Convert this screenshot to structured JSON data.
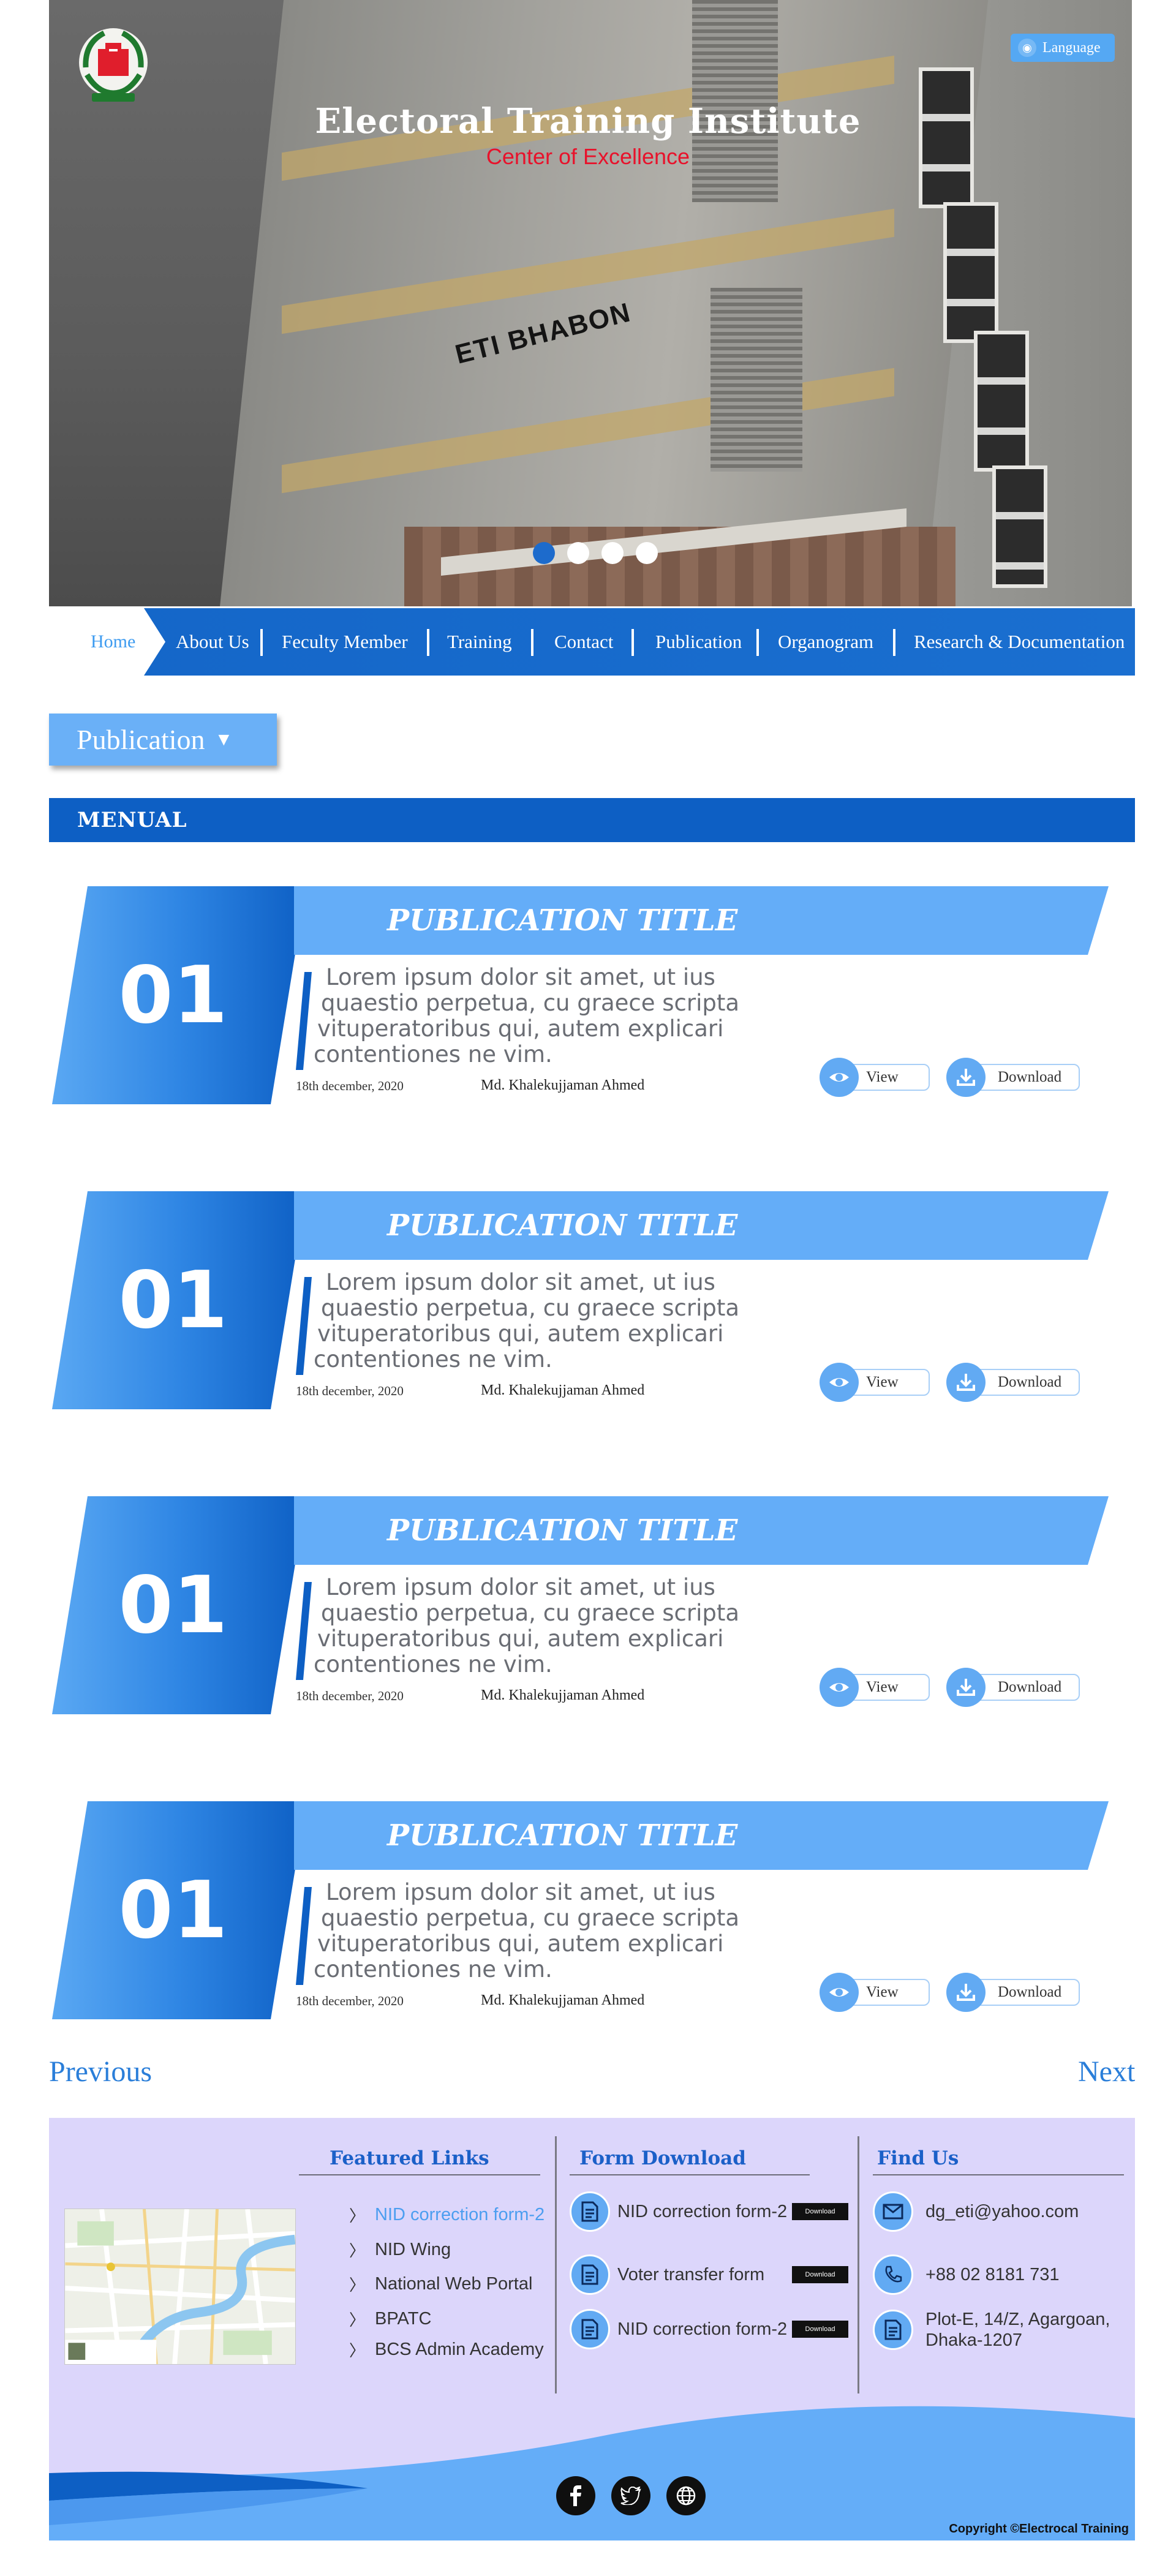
{
  "hero": {
    "title": "Electoral Training Institute",
    "subtitle": "Center of Excellence",
    "language_label": "Language",
    "building_label": "ETI BHABON",
    "slides": 4,
    "active_slide": 1
  },
  "nav": {
    "items": [
      {
        "label": "Home",
        "active": true
      },
      {
        "label": "About Us"
      },
      {
        "label": "Feculty Member"
      },
      {
        "label": "Training"
      },
      {
        "label": "Contact"
      },
      {
        "label": "Publication"
      },
      {
        "label": "Organogram"
      },
      {
        "label": "Research & Documentation"
      }
    ]
  },
  "dropdown": {
    "label": "Publication"
  },
  "section": {
    "title": "MENUAL"
  },
  "publications": [
    {
      "number": "01",
      "title": "PUBLICATION TITLE",
      "excerpt_lines": [
        "Lorem ipsum dolor sit amet, ut ius",
        "quaestio perpetua, cu graece scripta",
        "vituperatoribus qui, autem explicari",
        "contentiones ne vim."
      ],
      "date": "18th december, 2020",
      "author": "Md. Khalekujjaman Ahmed",
      "view_label": "View",
      "download_label": "Download"
    },
    {
      "number": "01",
      "title": "PUBLICATION TITLE",
      "excerpt_lines": [
        "Lorem ipsum dolor sit amet, ut ius",
        "quaestio perpetua, cu graece scripta",
        "vituperatoribus qui, autem explicari",
        "contentiones ne vim."
      ],
      "date": "18th december, 2020",
      "author": "Md. Khalekujjaman Ahmed",
      "view_label": "View",
      "download_label": "Download"
    },
    {
      "number": "01",
      "title": "PUBLICATION TITLE",
      "excerpt_lines": [
        "Lorem ipsum dolor sit amet, ut ius",
        "quaestio perpetua, cu graece scripta",
        "vituperatoribus qui, autem explicari",
        "contentiones ne vim."
      ],
      "date": "18th december, 2020",
      "author": "Md. Khalekujjaman Ahmed",
      "view_label": "View",
      "download_label": "Download"
    },
    {
      "number": "01",
      "title": "PUBLICATION TITLE",
      "excerpt_lines": [
        "Lorem ipsum dolor sit amet, ut ius",
        "quaestio perpetua, cu graece scripta",
        "vituperatoribus qui, autem explicari",
        "contentiones ne vim."
      ],
      "date": "18th december, 2020",
      "author": "Md. Khalekujjaman Ahmed",
      "view_label": "View",
      "download_label": "Download"
    }
  ],
  "pager": {
    "previous": "Previous",
    "next": "Next"
  },
  "footer": {
    "featured": {
      "heading": "Featured Links",
      "links": [
        "NID correction form-2",
        "NID Wing",
        "National Web Portal",
        "BPATC",
        "BCS Admin Academy"
      ]
    },
    "forms": {
      "heading": "Form Download",
      "items": [
        {
          "label": "NID correction form-2",
          "button": "Download"
        },
        {
          "label": "Voter transfer form",
          "button": "Download"
        },
        {
          "label": "NID correction form-2",
          "button": "Download"
        }
      ]
    },
    "find": {
      "heading": "Find Us",
      "email": "dg_eti@yahoo.com",
      "phone": "+88 02 8181 731",
      "address_line1": "Plot-E, 14/Z, Agargoan,",
      "address_line2": "Dhaka-1207"
    },
    "social": [
      "facebook-icon",
      "twitter-icon",
      "globe-icon"
    ],
    "copyright": "Copyright ©Electrocal Training"
  },
  "colors": {
    "primary": "#0d5fc4",
    "light_blue": "#64adf8",
    "accent_red": "#e8122b",
    "footer_bg": "#dcd6fb"
  }
}
